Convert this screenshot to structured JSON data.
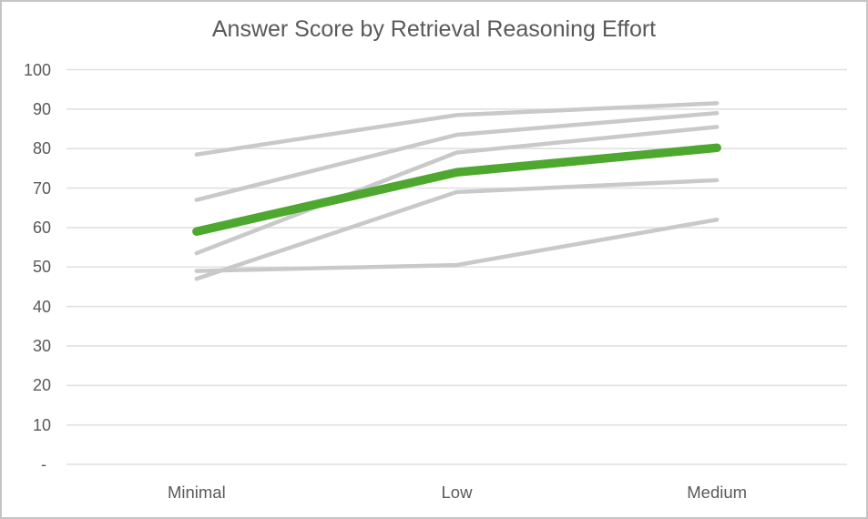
{
  "window": {
    "background_color": "#ffffff",
    "border_color": "#c4c4c4"
  },
  "chart_data": {
    "type": "line",
    "title": "Answer Score by Retrieval Reasoning Effort",
    "xlabel": "",
    "ylabel": "",
    "categories": [
      "Minimal",
      "Low",
      "Medium"
    ],
    "series": [
      {
        "role": "individual-run",
        "values": [
          78.5,
          88.5,
          91.5
        ],
        "color": "#c9c9c9",
        "stroke_width": 4.5
      },
      {
        "role": "individual-run",
        "values": [
          67.0,
          83.5,
          89.0
        ],
        "color": "#c9c9c9",
        "stroke_width": 4.5
      },
      {
        "role": "individual-run",
        "values": [
          53.5,
          79.0,
          85.5
        ],
        "color": "#c9c9c9",
        "stroke_width": 4.5
      },
      {
        "role": "individual-run",
        "values": [
          47.0,
          69.0,
          72.0
        ],
        "color": "#c9c9c9",
        "stroke_width": 4.5
      },
      {
        "role": "individual-run",
        "values": [
          49.0,
          50.5,
          62.0
        ],
        "color": "#c9c9c9",
        "stroke_width": 4.5
      },
      {
        "role": "average-highlight",
        "values": [
          59.0,
          74.0,
          80.2
        ],
        "color": "#4ea72e",
        "stroke_width": 9.5
      }
    ],
    "ylim": [
      0,
      100
    ],
    "ytick_step": 10,
    "ytick_labels": [
      "- ",
      "10",
      "20",
      "30",
      "40",
      "50",
      "60",
      "70",
      "80",
      "90",
      "100"
    ],
    "grid": true,
    "gridline_color": "#e1e1e1",
    "legend": false,
    "text_color": "#595959"
  }
}
